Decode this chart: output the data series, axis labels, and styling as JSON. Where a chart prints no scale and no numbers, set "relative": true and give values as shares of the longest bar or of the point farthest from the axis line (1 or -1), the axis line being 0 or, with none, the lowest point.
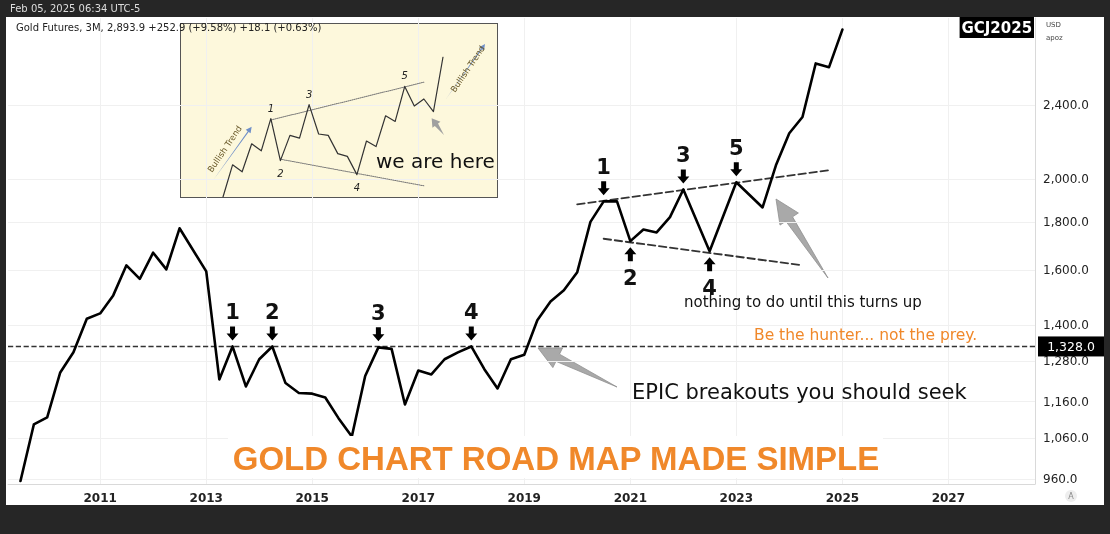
{
  "chart_data": [
    {
      "type": "line",
      "title": "GOLD CHART ROAD MAP MADE SIMPLE",
      "ylabel": "USD",
      "x": [
        "2009-07",
        "2009-10",
        "2010-01",
        "2010-04",
        "2010-07",
        "2010-10",
        "2011-01",
        "2011-04",
        "2011-07",
        "2011-10",
        "2012-01",
        "2012-04",
        "2012-07",
        "2013-01",
        "2013-04",
        "2013-07",
        "2013-10",
        "2014-01",
        "2014-04",
        "2014-07",
        "2014-10",
        "2015-01",
        "2015-04",
        "2015-07",
        "2015-10",
        "2016-01",
        "2016-04",
        "2016-07",
        "2016-10",
        "2017-01",
        "2017-04",
        "2017-07",
        "2017-10",
        "2018-01",
        "2018-04",
        "2018-07",
        "2018-10",
        "2019-01",
        "2019-04",
        "2019-07",
        "2019-10",
        "2020-01",
        "2020-04",
        "2020-07",
        "2020-10",
        "2021-01",
        "2021-04",
        "2021-07",
        "2021-10",
        "2022-01",
        "2022-07",
        "2023-01",
        "2023-07",
        "2023-10",
        "2024-01",
        "2024-04",
        "2024-07",
        "2024-10",
        "2025-01"
      ],
      "series": [
        {
          "color": "#000000",
          "values": [
            955,
            1097,
            1116,
            1246,
            1309,
            1421,
            1440,
            1505,
            1620,
            1567,
            1671,
            1604,
            1774,
            1596,
            1225,
            1328,
            1204,
            1287,
            1328,
            1214,
            1185,
            1183,
            1172,
            1114,
            1065,
            1235,
            1325,
            1320,
            1152,
            1252,
            1240,
            1287,
            1309,
            1328,
            1256,
            1198,
            1287,
            1301,
            1416,
            1483,
            1524,
            1593,
            1802,
            1895,
            1895,
            1719,
            1769,
            1756,
            1823,
            1951,
            1677,
            1986,
            1867,
            2070,
            2239,
            2330,
            2657,
            2633,
            2887
          ]
        },
        {
          "type": "line",
          "x": [
            "2020-01",
            "2024-10"
          ],
          "values": [
            1881,
            2045
          ],
          "color": "#333333",
          "line_style": "dashed"
        },
        {
          "type": "line",
          "x": [
            "2020-07",
            "2024-04"
          ],
          "values": [
            1729,
            1620
          ],
          "color": "#333333",
          "line_style": "dashed"
        }
      ],
      "xlim": [
        "2009-04-06",
        "2028-08-20"
      ],
      "xticks": [
        "2011",
        "2013",
        "2015",
        "2017",
        "2019",
        "2021",
        "2023",
        "2025",
        "2027"
      ],
      "ylim": [
        948,
        2970
      ],
      "log": "y",
      "yticks": [
        {
          "value": 960,
          "label": "960.0"
        },
        {
          "value": 1060,
          "label": "1,060.0"
        },
        {
          "value": 1160,
          "label": "1,160.0"
        },
        {
          "value": 1280,
          "label": "1,280.0"
        },
        {
          "value": 1400,
          "label": "1,400.0"
        },
        {
          "value": 1600,
          "label": "1,600.0"
        },
        {
          "value": 1800,
          "label": "1,800.0"
        },
        {
          "value": 2000,
          "label": "2,000.0"
        },
        {
          "value": 2400,
          "label": "2,400.0"
        }
      ],
      "ref_lines": [
        {
          "axis": "y",
          "value": 1328,
          "label": "1,328.0",
          "line_style": "dashed",
          "color": "#333333"
        }
      ],
      "grid": true,
      "marker": "none",
      "line_style": "solid",
      "annotations": [
        "Feb 05, 2025 06:34 UTC-5",
        "Gold Futures, 3M, 2,893.9 +252.9 (+9.58%) +18.1 (+0.63%)",
        "GCJ2025",
        "apoz",
        {
          "text": "1",
          "x": "2013-07",
          "y": 1328
        },
        {
          "text": "2",
          "x": "2014-04",
          "y": 1328
        },
        {
          "text": "3",
          "x": "2016-04",
          "y": 1325
        },
        {
          "text": "4",
          "x": "2018-01",
          "y": 1328
        },
        {
          "text": "1",
          "x": "2020-07",
          "y": 1895
        },
        {
          "text": "2",
          "x": "2021-01",
          "y": 1719
        },
        {
          "text": "3",
          "x": "2022-01",
          "y": 1951
        },
        {
          "text": "4",
          "x": "2022-07",
          "y": 1677
        },
        {
          "text": "5",
          "x": "2023-01",
          "y": 1986
        },
        "EPIC breakouts you should seek",
        "nothing to do until this turns up",
        "Be the hunter... not the prey.",
        "A"
      ]
    },
    {
      "type": "line",
      "relative": true,
      "marker": "none",
      "categories": [
        null,
        null,
        null,
        null,
        null,
        null,
        null,
        null,
        null,
        null,
        null,
        null,
        null,
        null,
        null,
        null,
        null,
        null,
        null,
        null,
        null,
        null,
        null,
        null
      ],
      "series": [
        {
          "color": "#333333",
          "values": [
            0,
            0.23,
            0.18,
            0.38,
            0.33,
            0.56,
            0.26,
            0.44,
            0.42,
            0.66,
            0.45,
            0.44,
            0.31,
            0.29,
            0.16,
            0.4,
            0.36,
            0.58,
            0.54,
            0.79,
            0.65,
            0.7,
            0.61,
            1
          ]
        },
        {
          "type": "line",
          "values": [
            null,
            null,
            null,
            null,
            null,
            0.55,
            null,
            null,
            null,
            null,
            null,
            null,
            null,
            null,
            null,
            null,
            null,
            null,
            null,
            null,
            null,
            0.82,
            null,
            null
          ],
          "color": "#777777",
          "line_style": "dotted"
        },
        {
          "type": "line",
          "values": [
            null,
            null,
            null,
            null,
            null,
            null,
            0.27,
            null,
            null,
            null,
            null,
            null,
            null,
            null,
            null,
            null,
            null,
            null,
            null,
            null,
            null,
            0.08,
            null,
            null
          ],
          "color": "#777777",
          "line_style": "dotted"
        }
      ],
      "annotations": [
        "1",
        "2",
        "3",
        "4",
        "5",
        "Bullish Trend",
        "Bullish Trend",
        "we are here"
      ]
    }
  ]
}
